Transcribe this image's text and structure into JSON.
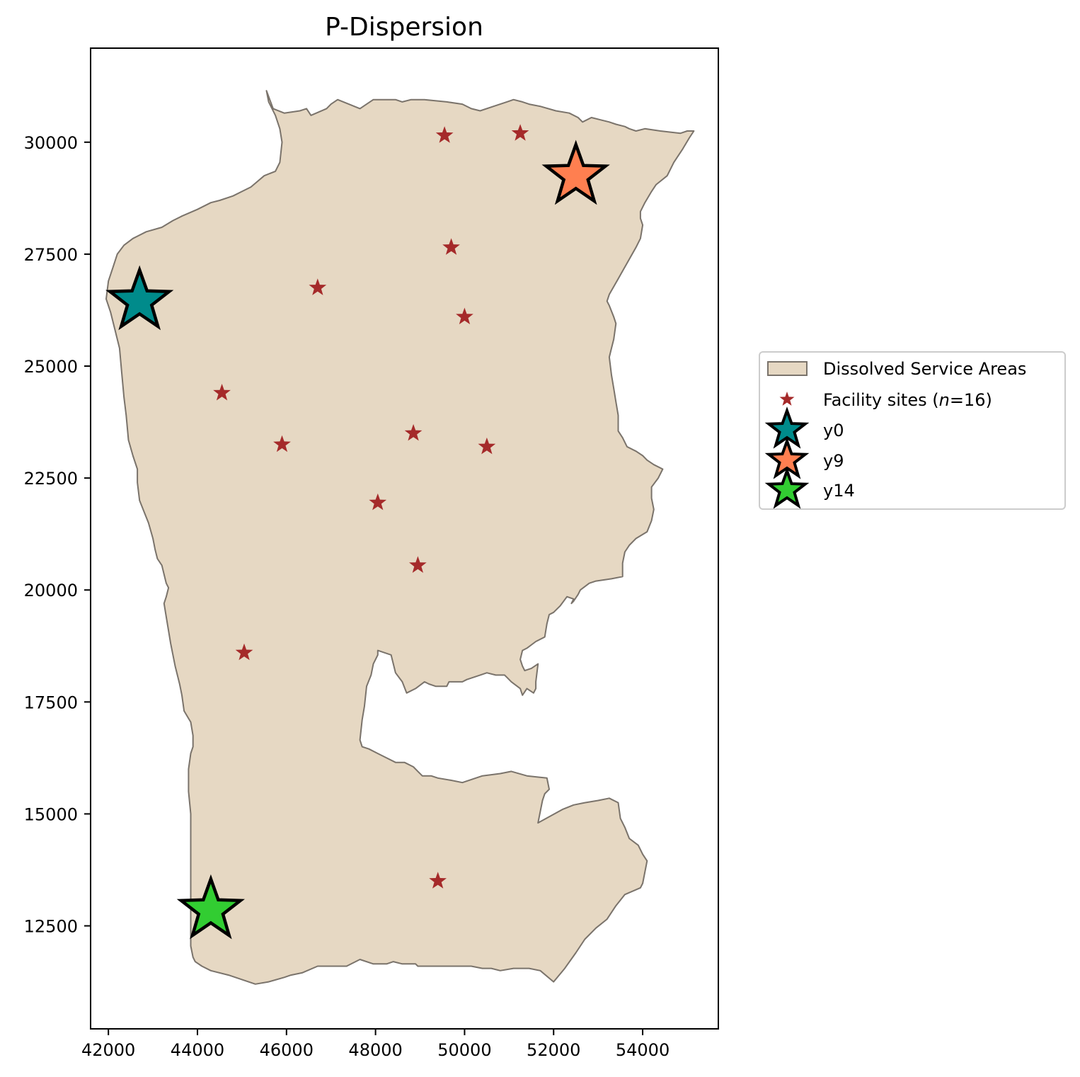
{
  "chart_data": {
    "type": "scatter",
    "title": "P-Dispersion",
    "xlabel": "",
    "ylabel": "",
    "xlim": [
      41600,
      55700
    ],
    "ylim": [
      10200,
      32100
    ],
    "xticks": [
      42000,
      44000,
      46000,
      48000,
      50000,
      52000,
      54000
    ],
    "yticks": [
      12500,
      15000,
      17500,
      20000,
      22500,
      25000,
      27500,
      30000
    ],
    "grid": false,
    "legend_position": "center-right outside",
    "colors": {
      "area_fill": "#e6d8c3",
      "area_edge": "#7a736b",
      "facility": "#a52a2a",
      "y0": "#008b8b",
      "y9": "#ff7f50",
      "y14": "#32cd32"
    },
    "area": {
      "name": "Dissolved Service Areas",
      "outline": [
        [
          45550,
          31150
        ],
        [
          45700,
          30750
        ],
        [
          45950,
          30650
        ],
        [
          46300,
          30700
        ],
        [
          46450,
          30750
        ],
        [
          46550,
          30600
        ],
        [
          46900,
          30750
        ],
        [
          47000,
          30850
        ],
        [
          47150,
          30950
        ],
        [
          47400,
          30850
        ],
        [
          47650,
          30750
        ],
        [
          47800,
          30850
        ],
        [
          47950,
          30950
        ],
        [
          48400,
          30950
        ],
        [
          48450,
          30950
        ],
        [
          48600,
          30900
        ],
        [
          48800,
          30950
        ],
        [
          49100,
          30950
        ],
        [
          49600,
          30900
        ],
        [
          49950,
          30850
        ],
        [
          50150,
          30750
        ],
        [
          50350,
          30700
        ],
        [
          50650,
          30800
        ],
        [
          50950,
          30900
        ],
        [
          51100,
          30950
        ],
        [
          51300,
          30900
        ],
        [
          51450,
          30850
        ],
        [
          51700,
          30800
        ],
        [
          52050,
          30700
        ],
        [
          52350,
          30650
        ],
        [
          52550,
          30550
        ],
        [
          52650,
          30450
        ],
        [
          52850,
          30550
        ],
        [
          53050,
          30500
        ],
        [
          53250,
          30450
        ],
        [
          53400,
          30400
        ],
        [
          53600,
          30350
        ],
        [
          53700,
          30300
        ],
        [
          53850,
          30250
        ],
        [
          54050,
          30300
        ],
        [
          54400,
          30250
        ],
        [
          54850,
          30200
        ],
        [
          55000,
          30250
        ],
        [
          55150,
          30250
        ],
        [
          55050,
          30100
        ],
        [
          54900,
          29850
        ],
        [
          54700,
          29550
        ],
        [
          54550,
          29250
        ],
        [
          54300,
          29050
        ],
        [
          54200,
          28900
        ],
        [
          54050,
          28650
        ],
        [
          53950,
          28450
        ],
        [
          53950,
          28300
        ],
        [
          54000,
          28150
        ],
        [
          53950,
          27850
        ],
        [
          53850,
          27650
        ],
        [
          53650,
          27300
        ],
        [
          53450,
          26950
        ],
        [
          53250,
          26600
        ],
        [
          53200,
          26450
        ],
        [
          53250,
          26350
        ],
        [
          53350,
          26100
        ],
        [
          53400,
          25950
        ],
        [
          53350,
          25600
        ],
        [
          53300,
          25400
        ],
        [
          53250,
          25200
        ],
        [
          53300,
          24800
        ],
        [
          53350,
          24500
        ],
        [
          53400,
          24200
        ],
        [
          53450,
          23900
        ],
        [
          53450,
          23550
        ],
        [
          53550,
          23400
        ],
        [
          53650,
          23200
        ],
        [
          53850,
          23100
        ],
        [
          54000,
          23000
        ],
        [
          54100,
          22900
        ],
        [
          54250,
          22800
        ],
        [
          54450,
          22700
        ],
        [
          54350,
          22500
        ],
        [
          54200,
          22300
        ],
        [
          54200,
          22050
        ],
        [
          54250,
          21800
        ],
        [
          54200,
          21550
        ],
        [
          54100,
          21300
        ],
        [
          53850,
          21150
        ],
        [
          53700,
          21000
        ],
        [
          53600,
          20850
        ],
        [
          53550,
          20600
        ],
        [
          53550,
          20300
        ],
        [
          53300,
          20250
        ],
        [
          52950,
          20200
        ],
        [
          52800,
          20150
        ],
        [
          52600,
          20000
        ],
        [
          52550,
          19900
        ],
        [
          52450,
          19750
        ],
        [
          52400,
          19700
        ],
        [
          52450,
          19800
        ],
        [
          52300,
          19850
        ],
        [
          52150,
          19650
        ],
        [
          52000,
          19500
        ],
        [
          51900,
          19450
        ],
        [
          51850,
          19250
        ],
        [
          51800,
          18950
        ],
        [
          51600,
          18850
        ],
        [
          51400,
          18700
        ],
        [
          51300,
          18650
        ],
        [
          51250,
          18450
        ],
        [
          51300,
          18300
        ],
        [
          51350,
          18200
        ],
        [
          51500,
          18250
        ],
        [
          51650,
          18350
        ],
        [
          51600,
          17950
        ],
        [
          51600,
          17800
        ],
        [
          51550,
          17700
        ],
        [
          51400,
          17800
        ],
        [
          51300,
          17650
        ],
        [
          51250,
          17800
        ],
        [
          51050,
          17950
        ],
        [
          50950,
          18050
        ],
        [
          50900,
          18100
        ],
        [
          50700,
          18100
        ],
        [
          50500,
          18150
        ],
        [
          50350,
          18100
        ],
        [
          50200,
          18050
        ],
        [
          50050,
          18000
        ],
        [
          49950,
          17950
        ],
        [
          49650,
          17950
        ],
        [
          49600,
          17850
        ],
        [
          49350,
          17850
        ],
        [
          49200,
          17900
        ],
        [
          49100,
          17950
        ],
        [
          48900,
          17800
        ],
        [
          48700,
          17700
        ],
        [
          48600,
          17950
        ],
        [
          48450,
          18150
        ],
        [
          48350,
          18550
        ],
        [
          48050,
          18650
        ],
        [
          48050,
          18550
        ],
        [
          47950,
          18350
        ],
        [
          47900,
          18100
        ],
        [
          47800,
          17850
        ],
        [
          47750,
          17400
        ],
        [
          47700,
          17100
        ],
        [
          47650,
          16650
        ],
        [
          47700,
          16500
        ],
        [
          47850,
          16450
        ],
        [
          48050,
          16350
        ],
        [
          48250,
          16250
        ],
        [
          48450,
          16150
        ],
        [
          48650,
          16150
        ],
        [
          48850,
          16050
        ],
        [
          48950,
          15950
        ],
        [
          49050,
          15850
        ],
        [
          49250,
          15850
        ],
        [
          49400,
          15800
        ],
        [
          49700,
          15750
        ],
        [
          49950,
          15700
        ],
        [
          50400,
          15850
        ],
        [
          50800,
          15900
        ],
        [
          51050,
          15950
        ],
        [
          51400,
          15850
        ],
        [
          51850,
          15800
        ],
        [
          51900,
          15550
        ],
        [
          51800,
          15450
        ],
        [
          51750,
          15300
        ],
        [
          51650,
          14800
        ],
        [
          52200,
          15100
        ],
        [
          52450,
          15200
        ],
        [
          52700,
          15250
        ],
        [
          53000,
          15300
        ],
        [
          53250,
          15350
        ],
        [
          53450,
          15250
        ],
        [
          53500,
          14900
        ],
        [
          53600,
          14700
        ],
        [
          53700,
          14450
        ],
        [
          53900,
          14300
        ],
        [
          54000,
          14100
        ],
        [
          54100,
          13950
        ],
        [
          54050,
          13700
        ],
        [
          54000,
          13450
        ],
        [
          53950,
          13350
        ],
        [
          53600,
          13200
        ],
        [
          53400,
          12950
        ],
        [
          53200,
          12650
        ],
        [
          52950,
          12450
        ],
        [
          52700,
          12200
        ],
        [
          52500,
          11900
        ],
        [
          52250,
          11550
        ],
        [
          52000,
          11250
        ],
        [
          51700,
          11500
        ],
        [
          51450,
          11550
        ],
        [
          51350,
          11550
        ],
        [
          51100,
          11550
        ],
        [
          50800,
          11500
        ],
        [
          50600,
          11550
        ],
        [
          50400,
          11550
        ],
        [
          50150,
          11600
        ],
        [
          49550,
          11600
        ],
        [
          48950,
          11600
        ],
        [
          48900,
          11650
        ],
        [
          48600,
          11650
        ],
        [
          48400,
          11700
        ],
        [
          48250,
          11650
        ],
        [
          47950,
          11650
        ],
        [
          47650,
          11750
        ],
        [
          47350,
          11600
        ],
        [
          46700,
          11600
        ],
        [
          46350,
          11450
        ],
        [
          46100,
          11400
        ],
        [
          45950,
          11350
        ],
        [
          45600,
          11250
        ],
        [
          45300,
          11200
        ],
        [
          44700,
          11400
        ],
        [
          44300,
          11500
        ],
        [
          44100,
          11600
        ],
        [
          43950,
          11700
        ],
        [
          43900,
          11800
        ],
        [
          43850,
          12050
        ],
        [
          43850,
          12250
        ],
        [
          43850,
          12550
        ],
        [
          43850,
          13000
        ],
        [
          43850,
          13500
        ],
        [
          43850,
          14000
        ],
        [
          43850,
          14500
        ],
        [
          43850,
          15000
        ],
        [
          43800,
          15500
        ],
        [
          43800,
          16000
        ],
        [
          43850,
          16350
        ],
        [
          43900,
          16500
        ],
        [
          43900,
          16750
        ],
        [
          43850,
          17050
        ],
        [
          43700,
          17300
        ],
        [
          43650,
          17650
        ],
        [
          43600,
          17900
        ],
        [
          43500,
          18300
        ],
        [
          43400,
          18800
        ],
        [
          43300,
          19400
        ],
        [
          43250,
          19700
        ],
        [
          43300,
          19850
        ],
        [
          43350,
          20050
        ],
        [
          43300,
          20150
        ],
        [
          43250,
          20350
        ],
        [
          43200,
          20550
        ],
        [
          43100,
          20700
        ],
        [
          43050,
          20900
        ],
        [
          43000,
          21150
        ],
        [
          42900,
          21500
        ],
        [
          42800,
          21750
        ],
        [
          42700,
          22000
        ],
        [
          42650,
          22400
        ],
        [
          42650,
          22700
        ],
        [
          42550,
          23000
        ],
        [
          42450,
          23350
        ],
        [
          42400,
          23900
        ],
        [
          42350,
          24300
        ],
        [
          42300,
          24850
        ],
        [
          42250,
          25400
        ],
        [
          42150,
          25800
        ],
        [
          42050,
          26200
        ],
        [
          41950,
          26500
        ],
        [
          42000,
          26900
        ],
        [
          42100,
          27200
        ],
        [
          42200,
          27500
        ],
        [
          42350,
          27700
        ],
        [
          42550,
          27850
        ],
        [
          42650,
          27900
        ],
        [
          42850,
          28000
        ],
        [
          43200,
          28100
        ],
        [
          43450,
          28250
        ],
        [
          43650,
          28350
        ],
        [
          44000,
          28500
        ],
        [
          44300,
          28650
        ],
        [
          44500,
          28700
        ],
        [
          44800,
          28800
        ],
        [
          45000,
          28900
        ],
        [
          45200,
          29000
        ],
        [
          45500,
          29250
        ],
        [
          45750,
          29350
        ],
        [
          45850,
          29550
        ],
        [
          45900,
          30000
        ],
        [
          45850,
          30300
        ],
        [
          45750,
          30600
        ],
        [
          45600,
          30900
        ],
        [
          45550,
          31150
        ]
      ]
    },
    "series": [
      {
        "name": "Facility sites (n=16)",
        "marker": "star-small",
        "points": [
          [
            49550,
            30150
          ],
          [
            51250,
            30200
          ],
          [
            49700,
            27650
          ],
          [
            46700,
            26750
          ],
          [
            50000,
            26100
          ],
          [
            44550,
            24400
          ],
          [
            45900,
            23250
          ],
          [
            48850,
            23500
          ],
          [
            50500,
            23200
          ],
          [
            48050,
            21950
          ],
          [
            48950,
            20550
          ],
          [
            45050,
            18600
          ],
          [
            49400,
            13500
          ],
          [
            42700,
            26450
          ],
          [
            52500,
            29250
          ],
          [
            44300,
            12850
          ]
        ]
      },
      {
        "name": "y0",
        "marker": "star-large",
        "points": [
          [
            42700,
            26450
          ]
        ]
      },
      {
        "name": "y9",
        "marker": "star-large",
        "points": [
          [
            52500,
            29250
          ]
        ]
      },
      {
        "name": "y14",
        "marker": "star-large",
        "points": [
          [
            44300,
            12850
          ]
        ]
      }
    ],
    "legend": [
      {
        "label": "Dissolved Service Areas",
        "kind": "patch"
      },
      {
        "label_prefix": "Facility sites (",
        "label_italic": "n",
        "label_suffix": "=16)",
        "kind": "star-small"
      },
      {
        "label": "y0",
        "kind": "star-large",
        "color_key": "y0"
      },
      {
        "label": "y9",
        "kind": "star-large",
        "color_key": "y9"
      },
      {
        "label": "y14",
        "kind": "star-large",
        "color_key": "y14"
      }
    ]
  }
}
